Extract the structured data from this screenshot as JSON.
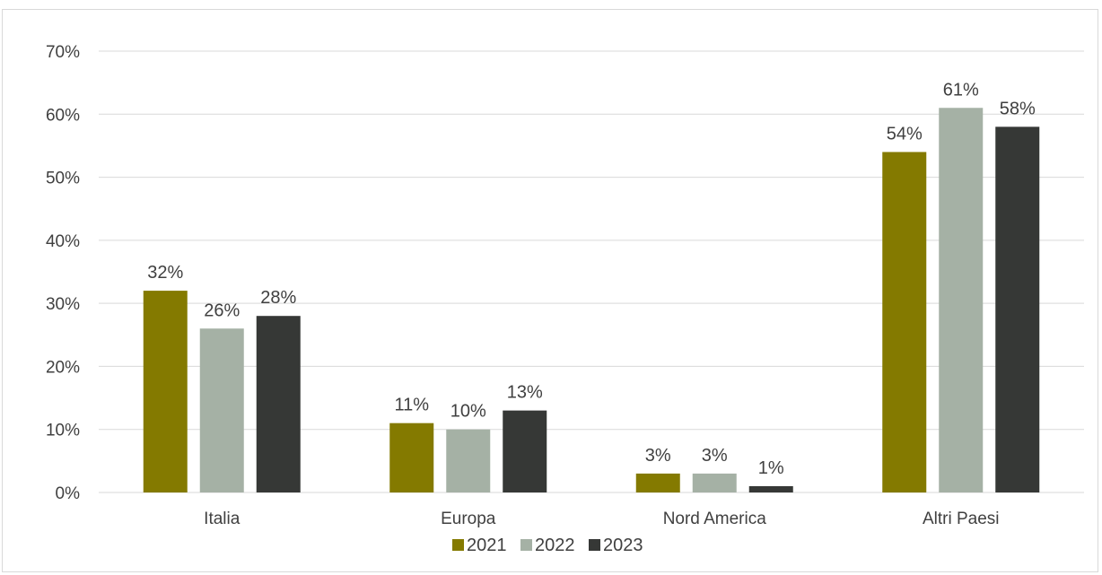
{
  "chart_data": {
    "type": "bar",
    "categories": [
      "Italia",
      "Europa",
      "Nord America",
      "Altri Paesi"
    ],
    "series": [
      {
        "name": "2021",
        "values": [
          32,
          11,
          3,
          54
        ],
        "color": "#847a00"
      },
      {
        "name": "2022",
        "values": [
          26,
          10,
          3,
          61
        ],
        "color": "#a5b1a5"
      },
      {
        "name": "2023",
        "values": [
          28,
          13,
          1,
          58
        ],
        "color": "#363836"
      }
    ],
    "ylim": [
      0,
      70
    ],
    "yticks": [
      0,
      10,
      20,
      30,
      40,
      50,
      60,
      70
    ],
    "y_tick_labels": [
      "0%",
      "10%",
      "20%",
      "30%",
      "40%",
      "50%",
      "60%",
      "70%"
    ],
    "value_suffix": "%",
    "gridlines": true,
    "legend_position": "bottom",
    "title": "",
    "xlabel": "",
    "ylabel": ""
  }
}
